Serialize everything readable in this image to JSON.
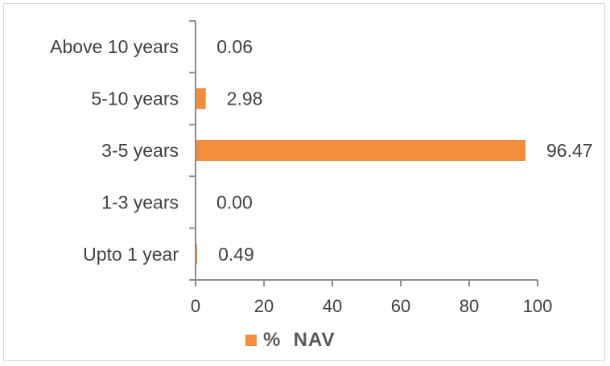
{
  "chart_data": {
    "type": "bar",
    "orientation": "horizontal",
    "categories": [
      "Upto 1 year",
      "1-3 years",
      "3-5 years",
      "5-10 years",
      "Above 10 years"
    ],
    "series": [
      {
        "name": "%  NAV",
        "values": [
          0.49,
          0.0,
          96.47,
          2.98,
          0.06
        ],
        "color": "#f58c3c"
      }
    ],
    "value_labels": [
      "0.49",
      "0.00",
      "96.47",
      "2.98",
      "0.06"
    ],
    "xlim": [
      0,
      100
    ],
    "x_ticks": [
      0,
      20,
      40,
      60,
      80,
      100
    ],
    "grid": false,
    "legend_position": "bottom"
  }
}
